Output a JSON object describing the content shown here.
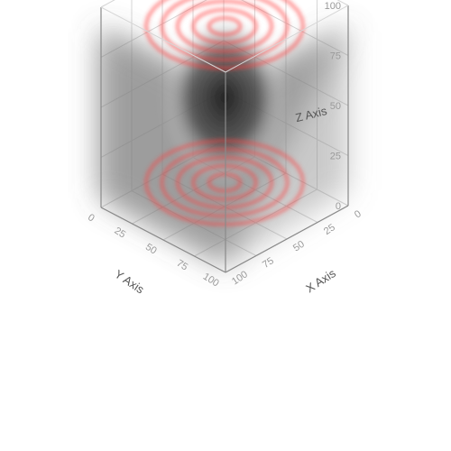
{
  "chart_data": {
    "type": "volume",
    "axes": {
      "x": {
        "label": "X Axis",
        "range": [
          0,
          100
        ],
        "ticks": [
          "0",
          "25",
          "50",
          "75",
          "100"
        ]
      },
      "y": {
        "label": "Y Axis",
        "range": [
          0,
          100
        ],
        "ticks": [
          "0",
          "25",
          "50",
          "75",
          "100"
        ]
      },
      "z": {
        "label": "Z Axis",
        "range": [
          0,
          100
        ],
        "ticks": [
          "0",
          "25",
          "50",
          "75",
          "100"
        ]
      }
    },
    "grid": true,
    "legend": "none",
    "colors": {
      "high": "#ff3b3b",
      "low": "#333333"
    },
    "rings": {
      "center": {
        "x": 50,
        "y": 50
      },
      "radii": [
        9,
        18,
        27,
        36,
        45
      ]
    }
  }
}
